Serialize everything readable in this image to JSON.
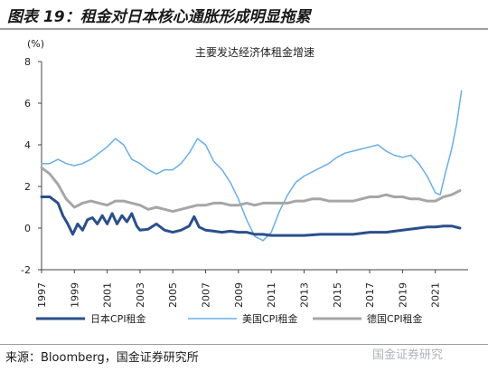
{
  "header": {
    "title": "图表 19：租金对日本核心通胀形成明显拖累"
  },
  "footer": {
    "source": "来源：Bloomberg，国金证券研究所",
    "watermark": "国金证券研究"
  },
  "chart_data": {
    "type": "line",
    "title": "主要发达经济体租金增速",
    "ylabel": "(%)",
    "ylim": [
      -2,
      8
    ],
    "yticks": [
      -2,
      0,
      2,
      4,
      6,
      8
    ],
    "xlim": [
      1997,
      2023
    ],
    "xticks": [
      "1997",
      "1999",
      "2001",
      "2003",
      "2005",
      "2007",
      "2009",
      "2011",
      "2013",
      "2015",
      "2017",
      "2019",
      "2021"
    ],
    "grid": false,
    "legend": "bottom",
    "series": [
      {
        "name": "日本CPI租金",
        "color": "#2b4f8c",
        "width": 3,
        "x": [
          1997,
          1997.5,
          1998,
          1998.3,
          1998.6,
          1998.9,
          1999.2,
          1999.5,
          1999.8,
          2000.1,
          2000.4,
          2000.7,
          2001,
          2001.3,
          2001.6,
          2001.9,
          2002.2,
          2002.5,
          2002.8,
          2003,
          2003.5,
          2004,
          2004.5,
          2005,
          2005.5,
          2006,
          2006.3,
          2006.6,
          2007,
          2007.5,
          2008,
          2008.5,
          2009,
          2009.5,
          2010,
          2010.5,
          2011,
          2012,
          2013,
          2014,
          2015,
          2016,
          2017,
          2018,
          2019,
          2020,
          2020.5,
          2021,
          2021.5,
          2022,
          2022.5
        ],
        "y": [
          1.5,
          1.5,
          1.2,
          0.6,
          0.2,
          -0.3,
          0.2,
          -0.1,
          0.4,
          0.5,
          0.2,
          0.6,
          0.2,
          0.7,
          0.2,
          0.6,
          0.3,
          0.7,
          0.1,
          -0.1,
          -0.05,
          0.2,
          -0.1,
          -0.2,
          -0.1,
          0.1,
          0.55,
          0.05,
          -0.1,
          -0.15,
          -0.2,
          -0.15,
          -0.2,
          -0.2,
          -0.3,
          -0.3,
          -0.35,
          -0.35,
          -0.35,
          -0.3,
          -0.3,
          -0.3,
          -0.2,
          -0.2,
          -0.1,
          0,
          0.05,
          0.05,
          0.1,
          0.1,
          0.0
        ]
      },
      {
        "name": "美国CPI租金",
        "color": "#6aaee6",
        "width": 1.5,
        "x": [
          1997,
          1997.5,
          1998,
          1998.5,
          1999,
          1999.5,
          2000,
          2000.5,
          2001,
          2001.5,
          2002,
          2002.5,
          2003,
          2003.5,
          2004,
          2004.5,
          2005,
          2005.5,
          2006,
          2006.5,
          2007,
          2007.5,
          2008,
          2008.5,
          2009,
          2009.5,
          2010,
          2010.5,
          2011,
          2011.5,
          2012,
          2012.5,
          2013,
          2013.5,
          2014,
          2014.5,
          2015,
          2015.5,
          2016,
          2016.5,
          2017,
          2017.5,
          2018,
          2018.5,
          2019,
          2019.5,
          2020,
          2020.5,
          2021,
          2021.3,
          2021.6,
          2022,
          2022.3,
          2022.6
        ],
        "y": [
          3.1,
          3.1,
          3.3,
          3.1,
          3.0,
          3.1,
          3.3,
          3.6,
          3.9,
          4.3,
          4.0,
          3.3,
          3.1,
          2.8,
          2.6,
          2.8,
          2.8,
          3.1,
          3.6,
          4.3,
          4.0,
          3.2,
          2.8,
          2.2,
          1.4,
          0.4,
          -0.4,
          -0.6,
          -0.2,
          0.8,
          1.6,
          2.2,
          2.5,
          2.7,
          2.9,
          3.1,
          3.4,
          3.6,
          3.7,
          3.8,
          3.9,
          4.0,
          3.7,
          3.5,
          3.4,
          3.5,
          3.1,
          2.5,
          1.7,
          1.6,
          2.6,
          3.8,
          5.0,
          6.6
        ]
      },
      {
        "name": "德国CPI租金",
        "color": "#a6a6a6",
        "width": 3,
        "x": [
          1997,
          1997.5,
          1998,
          1998.5,
          1999,
          1999.5,
          2000,
          2000.5,
          2001,
          2001.5,
          2002,
          2002.5,
          2003,
          2003.5,
          2004,
          2004.5,
          2005,
          2005.5,
          2006,
          2006.5,
          2007,
          2007.5,
          2008,
          2008.5,
          2009,
          2009.5,
          2010,
          2010.5,
          2011,
          2011.5,
          2012,
          2012.5,
          2013,
          2013.5,
          2014,
          2014.5,
          2015,
          2015.5,
          2016,
          2016.5,
          2017,
          2017.5,
          2018,
          2018.5,
          2019,
          2019.5,
          2020,
          2020.5,
          2021,
          2021.5,
          2022,
          2022.5
        ],
        "y": [
          2.9,
          2.6,
          2.1,
          1.4,
          1.0,
          1.2,
          1.3,
          1.2,
          1.1,
          1.3,
          1.3,
          1.2,
          1.1,
          0.9,
          1.0,
          0.9,
          0.8,
          0.9,
          1.0,
          1.1,
          1.1,
          1.2,
          1.2,
          1.1,
          1.1,
          1.2,
          1.1,
          1.2,
          1.2,
          1.2,
          1.2,
          1.3,
          1.3,
          1.4,
          1.4,
          1.3,
          1.3,
          1.3,
          1.3,
          1.4,
          1.5,
          1.5,
          1.6,
          1.5,
          1.5,
          1.4,
          1.4,
          1.3,
          1.3,
          1.5,
          1.6,
          1.8
        ]
      }
    ]
  }
}
